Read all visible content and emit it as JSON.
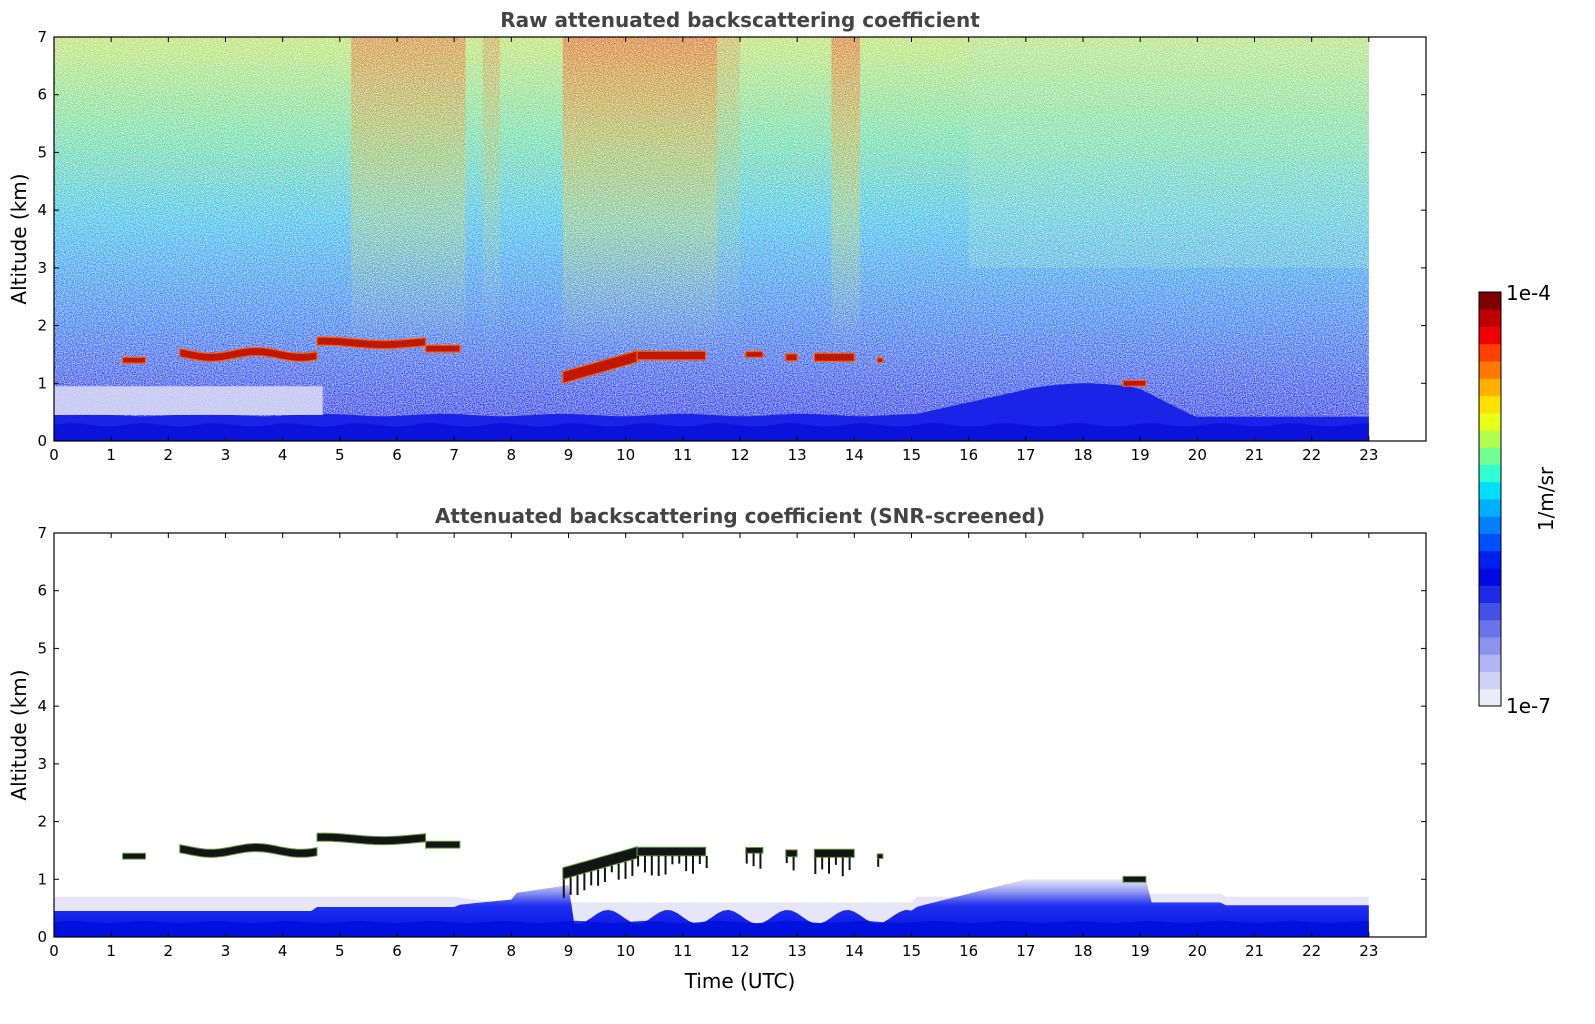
{
  "chart_data": [
    {
      "type": "heatmap",
      "title": "Raw attenuated backscattering coefficient",
      "xlabel": "",
      "ylabel": "Altitude (km)",
      "xlim": [
        0,
        24
      ],
      "ylim": [
        0,
        7
      ],
      "xticks": [
        "0",
        "1",
        "2",
        "3",
        "4",
        "5",
        "6",
        "7",
        "8",
        "9",
        "10",
        "11",
        "12",
        "13",
        "14",
        "15",
        "16",
        "17",
        "18",
        "19",
        "20",
        "21",
        "22",
        "23"
      ],
      "yticks": [
        "0",
        "1",
        "2",
        "3",
        "4",
        "5",
        "6",
        "7"
      ],
      "data_end_time": 23,
      "features": [
        {
          "name": "near-surface aerosol layer",
          "x": [
            0,
            23
          ],
          "top_km": [
            0.4,
            1.0
          ]
        },
        {
          "name": "cloud layer",
          "x": [
            1.2,
            1.6
          ],
          "altitude_km": 1.4
        },
        {
          "name": "cloud layer",
          "x": [
            2.2,
            7.0
          ],
          "altitude_km": [
            1.5,
            1.7
          ]
        },
        {
          "name": "broken cloud layer",
          "x": [
            8.9,
            14.5
          ],
          "altitude_km": [
            1.0,
            1.5
          ]
        },
        {
          "name": "cloud layer",
          "x": [
            18.7,
            19.1
          ],
          "altitude_km": 1.0
        }
      ]
    },
    {
      "type": "heatmap",
      "title": "Attenuated backscattering coefficient (SNR-screened)",
      "xlabel": "Time (UTC)",
      "ylabel": "Altitude (km)",
      "xlim": [
        0,
        24
      ],
      "ylim": [
        0,
        7
      ],
      "xticks": [
        "0",
        "1",
        "2",
        "3",
        "4",
        "5",
        "6",
        "7",
        "8",
        "9",
        "10",
        "11",
        "12",
        "13",
        "14",
        "15",
        "16",
        "17",
        "18",
        "19",
        "20",
        "21",
        "22",
        "23"
      ],
      "yticks": [
        "0",
        "1",
        "2",
        "3",
        "4",
        "5",
        "6",
        "7"
      ],
      "data_end_time": 23
    }
  ],
  "colorbar": {
    "label": "1/m/sr",
    "max_label": "1e-4",
    "min_label": "1e-7",
    "colors": [
      "#ececf8",
      "#cfd2f5",
      "#b0b5f2",
      "#8c93ee",
      "#6a73ea",
      "#4550e8",
      "#1f2ae6",
      "#0008e6",
      "#0020f0",
      "#0050ff",
      "#0080ff",
      "#00b0ff",
      "#00dfff",
      "#30ffd0",
      "#70ff90",
      "#b0ff50",
      "#e8ff18",
      "#ffe000",
      "#ffb000",
      "#ff7800",
      "#ff4000",
      "#f00000",
      "#c00000",
      "#800000"
    ]
  }
}
